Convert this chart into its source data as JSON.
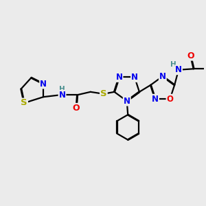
{
  "background_color": "#ebebeb",
  "atom_colors": {
    "C": "#000000",
    "N": "#0000ee",
    "O": "#ee0000",
    "S": "#aaaa00",
    "H": "#4a8f8f"
  },
  "bond_color": "#000000",
  "bond_width": 1.6,
  "figsize": [
    3.0,
    3.0
  ],
  "dpi": 100
}
